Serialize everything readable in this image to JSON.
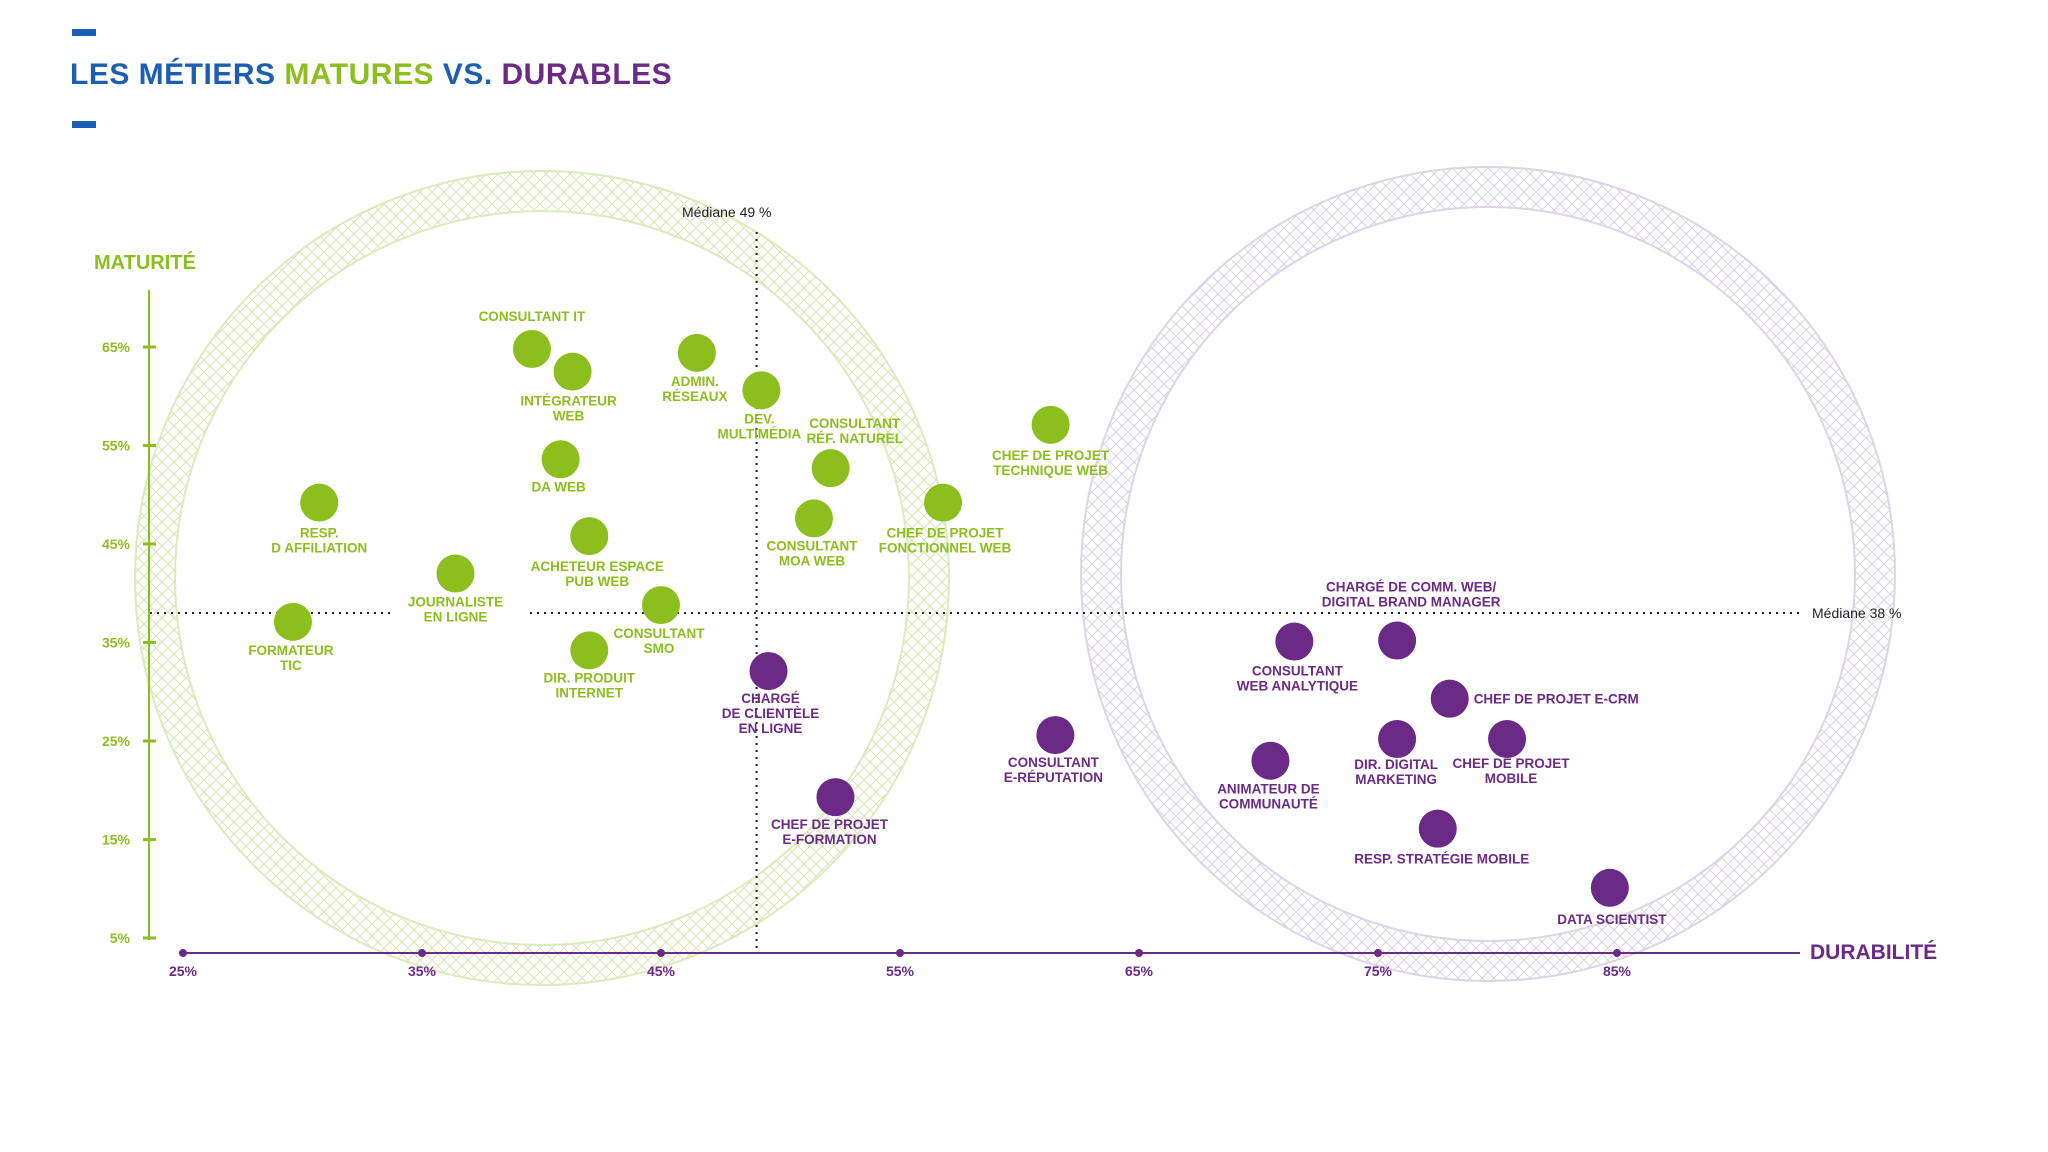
{
  "title": {
    "part1": "LES MÉTIERS ",
    "part2": "MATURES",
    "part3": " VS. ",
    "part4": "DURABLES"
  },
  "colors": {
    "blue": "#1a5fb4",
    "green": "#8cbe1e",
    "purple": "#6b2a86"
  },
  "chart_data": {
    "type": "scatter",
    "xlabel": "DURABILITÉ",
    "ylabel": "MATURITÉ",
    "xlim": [
      25,
      85
    ],
    "ylim": [
      5,
      65
    ],
    "x_ticks": [
      "25%",
      "35%",
      "45%",
      "55%",
      "65%",
      "75%",
      "85%"
    ],
    "y_ticks": [
      "65%",
      "55%",
      "45%",
      "35%",
      "25%",
      "15%",
      "5%"
    ],
    "median_x": {
      "value": 49,
      "label": "Médiane 49 %"
    },
    "median_y": {
      "value": 38,
      "label": "Médiane 38 %"
    },
    "series": [
      {
        "color": "#8cbe1e",
        "points": [
          {
            "label": [
              "CONSULTANT IT"
            ],
            "x": 39.6,
            "y": 64.8
          },
          {
            "label": [
              "INTÉGRATEUR",
              "WEB"
            ],
            "x": 41.3,
            "y": 62.5
          },
          {
            "label": [
              "ADMIN.",
              "RÉSEAUX"
            ],
            "x": 46.5,
            "y": 64.4
          },
          {
            "label": [
              "DEV.",
              "MULTIMÉDIA"
            ],
            "x": 49.2,
            "y": 60.6
          },
          {
            "label": [
              "DA WEB"
            ],
            "x": 40.8,
            "y": 53.6
          },
          {
            "label": [
              "CONSULTANT",
              "RÉF. NATUREL"
            ],
            "x": 52.1,
            "y": 52.7
          },
          {
            "label": [
              "RESP.",
              "D AFFILIATION"
            ],
            "x": 30.7,
            "y": 49.2
          },
          {
            "label": [
              "CHEF DE PROJET",
              "TECHNIQUE WEB"
            ],
            "x": 61.3,
            "y": 57.1
          },
          {
            "label": [
              "CHEF DE PROJET",
              "FONCTIONNEL WEB"
            ],
            "x": 56.8,
            "y": 49.2
          },
          {
            "label": [
              "CONSULTANT",
              "MOA WEB"
            ],
            "x": 51.4,
            "y": 47.6
          },
          {
            "label": [
              "ACHETEUR ESPACE",
              "PUB WEB"
            ],
            "x": 42.0,
            "y": 45.8
          },
          {
            "label": [
              "JOURNALISTE",
              "EN LIGNE"
            ],
            "x": 36.4,
            "y": 42.0
          },
          {
            "label": [
              "CONSULTANT",
              "SMO"
            ],
            "x": 45.0,
            "y": 38.8
          },
          {
            "label": [
              "FORMATEUR",
              "TIC"
            ],
            "x": 29.6,
            "y": 37.1
          },
          {
            "label": [
              "DIR. PRODUIT",
              "INTERNET"
            ],
            "x": 42.0,
            "y": 34.2
          }
        ]
      },
      {
        "color": "#6b2a86",
        "points": [
          {
            "label": [
              "CHARGÉ",
              "DE CLIENTÈLE",
              "EN LIGNE"
            ],
            "x": 49.5,
            "y": 32.1
          },
          {
            "label": [
              "CHEF DE PROJET",
              "E-FORMATION"
            ],
            "x": 52.3,
            "y": 19.3
          },
          {
            "label": [
              "CONSULTANT",
              "E-RÉPUTATION"
            ],
            "x": 61.5,
            "y": 25.6
          },
          {
            "label": [
              "CONSULTANT",
              "WEB ANALYTIQUE"
            ],
            "x": 71.5,
            "y": 35.1
          },
          {
            "label": [
              "CHARGÉ DE COMM. WEB/",
              "DIGITAL BRAND MANAGER"
            ],
            "x": 75.8,
            "y": 35.2
          },
          {
            "label": [
              "CHEF DE PROJET E-CRM"
            ],
            "x": 78.0,
            "y": 29.3
          },
          {
            "label": [
              "ANIMATEUR DE",
              "COMMUNAUTÉ"
            ],
            "x": 70.5,
            "y": 23.0
          },
          {
            "label": [
              "DIR. DIGITAL",
              "MARKETING"
            ],
            "x": 75.8,
            "y": 25.2
          },
          {
            "label": [
              "CHEF DE PROJET",
              "MOBILE"
            ],
            "x": 80.4,
            "y": 25.2
          },
          {
            "label": [
              "RESP. STRATÉGIE MOBILE"
            ],
            "x": 77.5,
            "y": 16.1
          },
          {
            "label": [
              "DATA SCIENTIST"
            ],
            "x": 84.7,
            "y": 10.1
          }
        ]
      }
    ]
  }
}
